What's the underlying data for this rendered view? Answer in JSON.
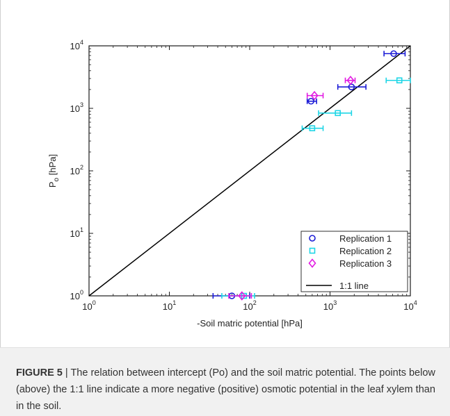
{
  "chart_data": {
    "type": "scatter",
    "xscale": "log",
    "yscale": "log",
    "xlim": [
      1,
      10000
    ],
    "ylim": [
      1,
      10000
    ],
    "xlabel": "-Soil matric potential [hPa]",
    "ylabel": {
      "main": "P",
      "sub": "o",
      "unit": "[hPa]"
    },
    "x_ticks": [
      {
        "base": "10",
        "exp": "0",
        "value": 1
      },
      {
        "base": "10",
        "exp": "1",
        "value": 10
      },
      {
        "base": "10",
        "exp": "2",
        "value": 100
      },
      {
        "base": "10",
        "exp": "3",
        "value": 1000
      },
      {
        "base": "10",
        "exp": "4",
        "value": 10000
      }
    ],
    "y_ticks": [
      {
        "base": "10",
        "exp": "0",
        "value": 1
      },
      {
        "base": "10",
        "exp": "1",
        "value": 10
      },
      {
        "base": "10",
        "exp": "2",
        "value": 100
      },
      {
        "base": "10",
        "exp": "3",
        "value": 1000
      },
      {
        "base": "10",
        "exp": "4",
        "value": 10000
      }
    ],
    "legend_position": "bottom-right",
    "series": [
      {
        "name": "Replication 1",
        "marker": "circle",
        "color": "#1c1cd6",
        "points": [
          {
            "x": 60,
            "y": 1,
            "xerr": [
              35,
              100
            ]
          },
          {
            "x": 580,
            "y": 1300,
            "xerr": [
              520,
              680
            ]
          },
          {
            "x": 1850,
            "y": 2200,
            "xerr": [
              1250,
              2800
            ]
          },
          {
            "x": 6200,
            "y": 7500,
            "xerr": [
              4700,
              8600
            ]
          }
        ]
      },
      {
        "name": "Replication 2",
        "marker": "square",
        "color": "#1fd6e6",
        "points": [
          {
            "x": 85,
            "y": 1,
            "xerr": [
              45,
              115
            ]
          },
          {
            "x": 600,
            "y": 480,
            "xerr": [
              450,
              820
            ]
          },
          {
            "x": 1250,
            "y": 840,
            "xerr": [
              720,
              1850
            ]
          },
          {
            "x": 7300,
            "y": 2800,
            "xerr": [
              5000,
              10000
            ]
          }
        ]
      },
      {
        "name": "Replication 3",
        "marker": "diamond",
        "color": "#e21be2",
        "points": [
          {
            "x": 80,
            "y": 1,
            "xerr": [
              55,
              105
            ]
          },
          {
            "x": 640,
            "y": 1600,
            "xerr": [
              520,
              820
            ]
          },
          {
            "x": 1800,
            "y": 2800,
            "xerr": [
              1550,
              2050
            ]
          }
        ]
      }
    ],
    "reference_line": {
      "name": "1:1 line",
      "color": "#000000",
      "from": [
        1,
        1
      ],
      "to": [
        10000,
        10000
      ]
    }
  },
  "caption": {
    "label": "FIGURE 5",
    "separator": " | ",
    "text": "The relation between intercept (Po) and the soil matric potential. The points below (above) the 1:1 line indicate a more negative (positive) osmotic potential in the leaf xylem than in the soil."
  }
}
